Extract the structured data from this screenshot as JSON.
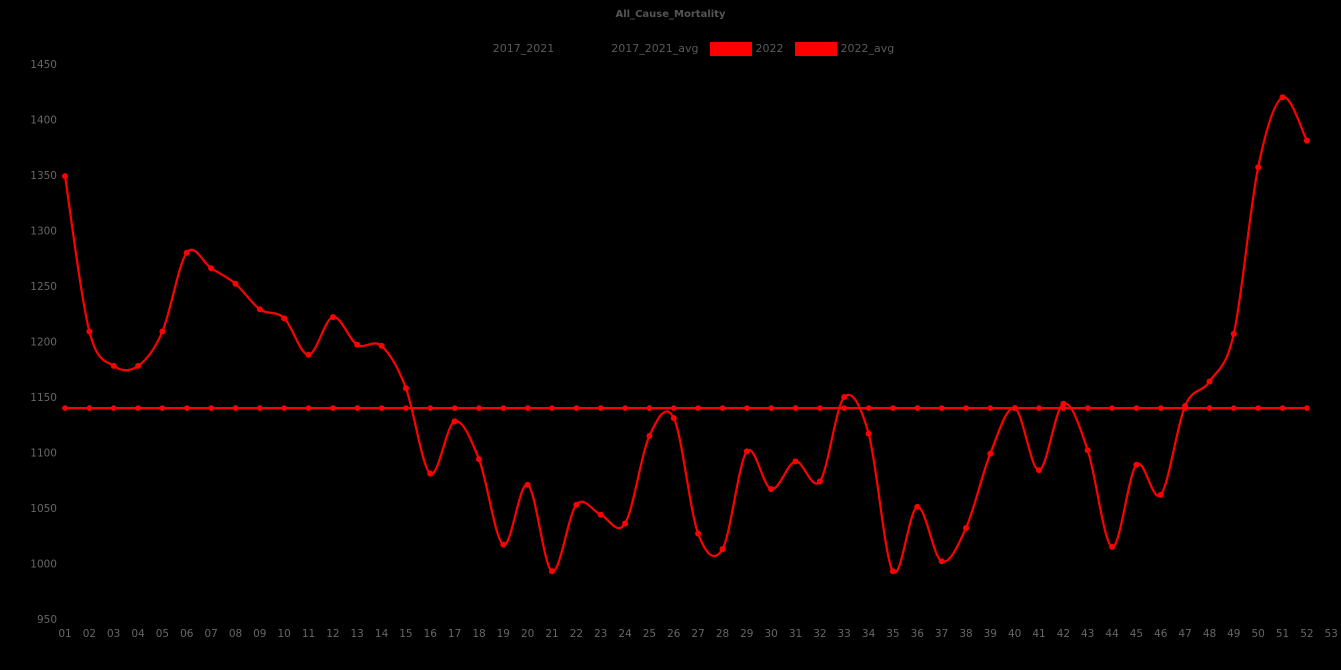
{
  "chart_data": {
    "type": "line",
    "title": "All_Cause_Mortality",
    "background_color": "#000000",
    "title_color": "#555555",
    "tick_color": "#666666",
    "accent_color": "#ff0000",
    "grid": false,
    "x_axis": {
      "range": [
        1,
        53
      ],
      "ticklabels": [
        "01",
        "02",
        "03",
        "04",
        "05",
        "06",
        "07",
        "08",
        "09",
        "10",
        "11",
        "12",
        "13",
        "14",
        "15",
        "16",
        "17",
        "18",
        "19",
        "20",
        "21",
        "22",
        "23",
        "24",
        "25",
        "26",
        "27",
        "28",
        "29",
        "30",
        "31",
        "32",
        "33",
        "34",
        "35",
        "36",
        "37",
        "38",
        "39",
        "40",
        "41",
        "42",
        "43",
        "44",
        "45",
        "46",
        "47",
        "48",
        "49",
        "50",
        "51",
        "52",
        "53"
      ]
    },
    "y_axis": {
      "min": 950,
      "max": 1450,
      "ticks": [
        950,
        1000,
        1050,
        1100,
        1150,
        1200,
        1250,
        1300,
        1350,
        1400,
        1450
      ]
    },
    "legend": {
      "position": "top-center",
      "entries": [
        {
          "label": "2017_2021",
          "swatch_color": "#000000",
          "visible_swatch": false
        },
        {
          "label": "2017_2021_avg",
          "swatch_color": "#000000",
          "visible_swatch": false
        },
        {
          "label": "2022",
          "swatch_color": "#ff0000",
          "visible_swatch": true
        },
        {
          "label": "2022_avg",
          "swatch_color": "#ff0000",
          "visible_swatch": true
        }
      ]
    },
    "series": [
      {
        "name": "2022",
        "color": "#ff0000",
        "marker": "circle",
        "week_start": 1,
        "values": [
          1349,
          1209,
          1178,
          1178,
          1209,
          1280,
          1266,
          1252,
          1229,
          1221,
          1188,
          1222,
          1197,
          1196,
          1158,
          1081,
          1128,
          1094,
          1017,
          1071,
          993,
          1053,
          1044,
          1036,
          1115,
          1131,
          1027,
          1013,
          1101,
          1067,
          1092,
          1074,
          1150,
          1117,
          993,
          1051,
          1002,
          1032,
          1099,
          1140,
          1084,
          1144,
          1102,
          1015,
          1089,
          1062,
          1142,
          1164,
          1207,
          1357,
          1420,
          1381
        ]
      },
      {
        "name": "2022_avg",
        "color": "#ff0000",
        "marker": "circle",
        "value": 1140,
        "week_start": 1,
        "week_end": 52
      }
    ]
  }
}
